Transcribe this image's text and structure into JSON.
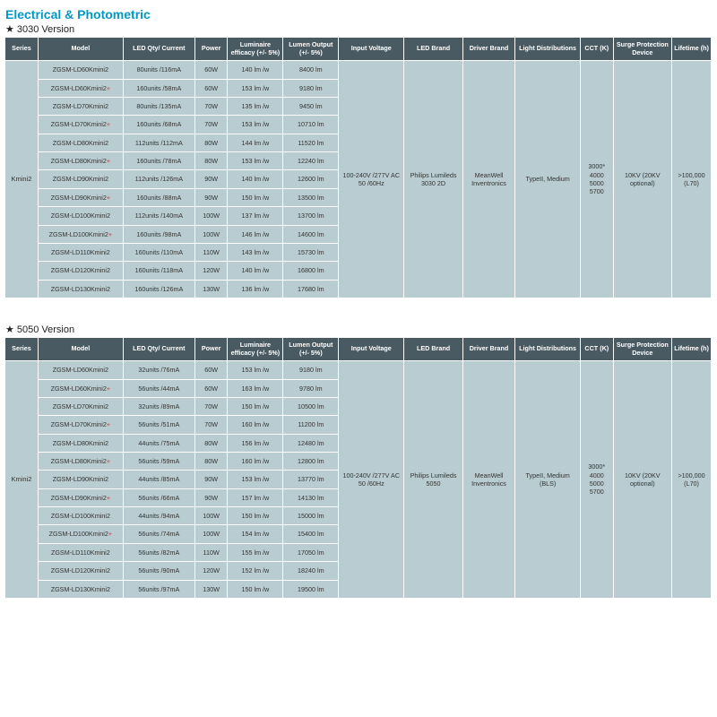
{
  "page_title": "Electrical & Photometric",
  "columns": [
    "Series",
    "Model",
    "LED Qty/ Current",
    "Power",
    "Luminaire efficacy (+/- 5%)",
    "Lumen Output (+/- 5%)",
    "Input Voltage",
    "LED Brand",
    "Driver Brand",
    "Light Distributions",
    "CCT (K)",
    "Surge Protection Device",
    "Lifetime (h)"
  ],
  "tables": [
    {
      "version_label": "3030 Version",
      "series": "Kmini2",
      "shared": {
        "input_voltage": "100-240V /277V AC 50 /60Hz",
        "led_brand": "Philips Lumileds 3030 2D",
        "driver_brand": "MeanWell Inventronics",
        "light_dist": "TypeII, Medium",
        "cct": "3000* 4000 5000 5700",
        "surge": "10KV (20KV optional)",
        "lifetime": ">100,000 (L70)"
      },
      "rows": [
        {
          "model": "ZGSM-LD60Kmini2",
          "plus": false,
          "led": "80units /116mA",
          "power": "60W",
          "eff": "140 lm /w",
          "lumen": "8400 lm"
        },
        {
          "model": "ZGSM-LD60Kmini2",
          "plus": true,
          "led": "160units /58mA",
          "power": "60W",
          "eff": "153 lm /w",
          "lumen": "9180 lm"
        },
        {
          "model": "ZGSM-LD70Kmini2",
          "plus": false,
          "led": "80units /135mA",
          "power": "70W",
          "eff": "135 lm /w",
          "lumen": "9450 lm"
        },
        {
          "model": "ZGSM-LD70Kmini2",
          "plus": true,
          "led": "160units /68mA",
          "power": "70W",
          "eff": "153 lm /w",
          "lumen": "10710 lm"
        },
        {
          "model": "ZGSM-LD80Kmini2",
          "plus": false,
          "led": "112units /112mA",
          "power": "80W",
          "eff": "144 lm /w",
          "lumen": "11520 lm"
        },
        {
          "model": "ZGSM-LD80Kmini2",
          "plus": true,
          "led": "160units /78mA",
          "power": "80W",
          "eff": "153 lm /w",
          "lumen": "12240 lm"
        },
        {
          "model": "ZGSM-LD90Kmini2",
          "plus": false,
          "led": "112units /126mA",
          "power": "90W",
          "eff": "140 lm /w",
          "lumen": "12600 lm"
        },
        {
          "model": "ZGSM-LD90Kmini2",
          "plus": true,
          "led": "160units /88mA",
          "power": "90W",
          "eff": "150 lm /w",
          "lumen": "13500 lm"
        },
        {
          "model": "ZGSM-LD100Kmini2",
          "plus": false,
          "led": "112units /140mA",
          "power": "100W",
          "eff": "137 lm /w",
          "lumen": "13700 lm"
        },
        {
          "model": "ZGSM-LD100Kmini2",
          "plus": true,
          "led": "160units /98mA",
          "power": "100W",
          "eff": "146 lm /w",
          "lumen": "14600 lm"
        },
        {
          "model": "ZGSM-LD110Kmini2",
          "plus": false,
          "led": "160units /110mA",
          "power": "110W",
          "eff": "143 lm /w",
          "lumen": "15730 lm"
        },
        {
          "model": "ZGSM-LD120Kmini2",
          "plus": false,
          "led": "160units /118mA",
          "power": "120W",
          "eff": "140 lm /w",
          "lumen": "16800 lm"
        },
        {
          "model": "ZGSM-LD130Kmini2",
          "plus": false,
          "led": "160units /126mA",
          "power": "130W",
          "eff": "136 lm /w",
          "lumen": "17680 lm"
        }
      ]
    },
    {
      "version_label": "5050 Version",
      "series": "Kmini2",
      "shared": {
        "input_voltage": "100-240V /277V AC 50 /60Hz",
        "led_brand": "Philips Lumileds 5050",
        "driver_brand": "MeanWell Inventronics",
        "light_dist": "TypeII, Medium (BLS)",
        "cct": "3000* 4000 5000 5700",
        "surge": "10KV (20KV optional)",
        "lifetime": ">100,000 (L70)"
      },
      "rows": [
        {
          "model": "ZGSM-LD60Kmini2",
          "plus": false,
          "led": "32units /76mA",
          "power": "60W",
          "eff": "153 lm /w",
          "lumen": "9180 lm"
        },
        {
          "model": "ZGSM-LD60Kmini2",
          "plus": true,
          "led": "56units /44mA",
          "power": "60W",
          "eff": "163 lm /w",
          "lumen": "9780 lm"
        },
        {
          "model": "ZGSM-LD70Kmini2",
          "plus": false,
          "led": "32units /89mA",
          "power": "70W",
          "eff": "150 lm /w",
          "lumen": "10500 lm"
        },
        {
          "model": "ZGSM-LD70Kmini2",
          "plus": true,
          "led": "56units /51mA",
          "power": "70W",
          "eff": "160 lm /w",
          "lumen": "11200 lm"
        },
        {
          "model": "ZGSM-LD80Kmini2",
          "plus": false,
          "led": "44units /75mA",
          "power": "80W",
          "eff": "156 lm /w",
          "lumen": "12480 lm"
        },
        {
          "model": "ZGSM-LD80Kmini2",
          "plus": true,
          "led": "56units /59mA",
          "power": "80W",
          "eff": "160 lm /w",
          "lumen": "12800 lm"
        },
        {
          "model": "ZGSM-LD90Kmini2",
          "plus": false,
          "led": "44units /85mA",
          "power": "90W",
          "eff": "153 lm /w",
          "lumen": "13770 lm"
        },
        {
          "model": "ZGSM-LD90Kmini2",
          "plus": true,
          "led": "56units /66mA",
          "power": "90W",
          "eff": "157 lm /w",
          "lumen": "14130 lm"
        },
        {
          "model": "ZGSM-LD100Kmini2",
          "plus": false,
          "led": "44units /94mA",
          "power": "100W",
          "eff": "150 lm /w",
          "lumen": "15000 lm"
        },
        {
          "model": "ZGSM-LD100Kmini2",
          "plus": true,
          "led": "56units /74mA",
          "power": "100W",
          "eff": "154 lm /w",
          "lumen": "15400 lm"
        },
        {
          "model": "ZGSM-LD110Kmini2",
          "plus": false,
          "led": "56units /82mA",
          "power": "110W",
          "eff": "155 lm /w",
          "lumen": "17050 lm"
        },
        {
          "model": "ZGSM-LD120Kmini2",
          "plus": false,
          "led": "56units /90mA",
          "power": "120W",
          "eff": "152 lm /w",
          "lumen": "18240 lm"
        },
        {
          "model": "ZGSM-LD130Kmini2",
          "plus": false,
          "led": "56units /97mA",
          "power": "130W",
          "eff": "150 lm /w",
          "lumen": "19500 lm"
        }
      ]
    }
  ]
}
